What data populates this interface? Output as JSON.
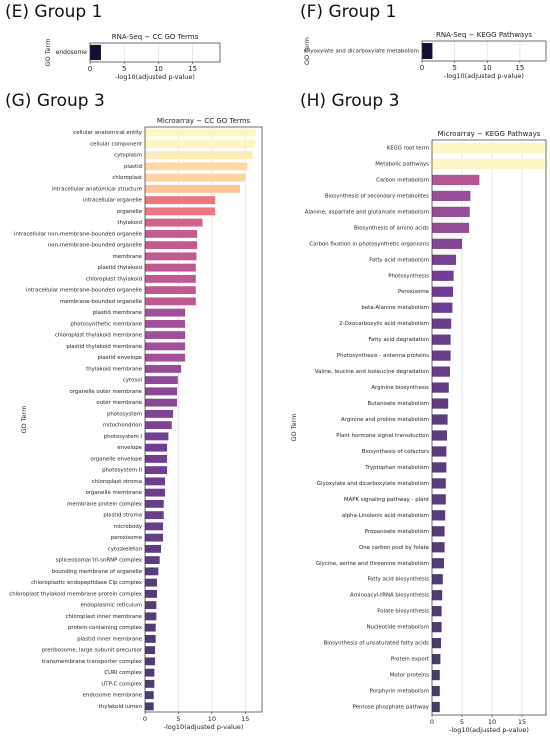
{
  "panels": {
    "e": "(E) Group 1",
    "f": "(F) Group 1",
    "g": "(G) Group 3",
    "h": "(H) Group 3"
  },
  "chart_data": [
    {
      "id": "e",
      "type": "bar",
      "orientation": "horizontal",
      "title": "RNA-Seq − CC GO Terms",
      "xlabel": "-log10(adjusted p-value)",
      "ylabel": "GO Term",
      "xlim": [
        0,
        19
      ],
      "xticks": [
        0,
        5,
        10,
        15
      ],
      "grid": true,
      "categories": [
        "endosome"
      ],
      "values": [
        1.6
      ],
      "colors": [
        "#150e37"
      ]
    },
    {
      "id": "f",
      "type": "bar",
      "orientation": "horizontal",
      "title": "RNA-Seq − KEGG Pathways",
      "xlabel": "-log10(adjusted p-value)",
      "ylabel": "GO Term",
      "xlim": [
        0,
        19
      ],
      "xticks": [
        0,
        5,
        10,
        15
      ],
      "grid": true,
      "categories": [
        "Glyoxylate and dicarboxylate metabolism"
      ],
      "values": [
        1.6
      ],
      "colors": [
        "#150e37"
      ]
    },
    {
      "id": "g",
      "type": "bar",
      "orientation": "horizontal",
      "title": "Microarray − CC GO Terms",
      "xlabel": "-log10(adjusted p-value)",
      "ylabel": "GO Term",
      "xlim": [
        0,
        17.5
      ],
      "xticks": [
        0,
        5,
        10,
        15
      ],
      "grid": true,
      "categories": [
        "cellular anatomical entity",
        "cellular component",
        "cytoplasm",
        "plastid",
        "chloroplast",
        "intracellular anatomical structure",
        "intracellular organelle",
        "organelle",
        "thylakoid",
        "intracellular non-membrane-bounded organelle",
        "non-membrane-bounded organelle",
        "membrane",
        "plastid thylakoid",
        "chloroplast thylakoid",
        "intracellular membrane-bounded organelle",
        "membrane-bounded organelle",
        "plastid membrane",
        "photosynthetic membrane",
        "chloroplast thylakoid membrane",
        "plastid thylakoid membrane",
        "plastid envelope",
        "thylakoid membrane",
        "cytosol",
        "organelle outer membrane",
        "outer membrane",
        "photosystem",
        "mitochondrion",
        "photosystem I",
        "envelope",
        "organelle envelope",
        "photosystem II",
        "chloroplast stroma",
        "organelle membrane",
        "membrane protein complex",
        "plastid stroma",
        "microbody",
        "peroxisome",
        "cytoskeleton",
        "spliceosomal tri-snRNP complex",
        "bounding membrane of organelle",
        "chloroplastic endopeptidase Clp complex",
        "chloroplast thylakoid membrane protein complex",
        "endoplasmic reticulum",
        "chloroplast inner membrane",
        "protein-containing complex",
        "plastid inner membrane",
        "preribosome, large subunit precursor",
        "transmembrane transporter complex",
        "CURI complex",
        "UTP-C complex",
        "endosome membrane",
        "thylakoid lumen"
      ],
      "values": [
        16.6,
        16.5,
        16.1,
        15.3,
        15.0,
        14.2,
        10.5,
        10.5,
        8.6,
        7.8,
        7.8,
        7.7,
        7.6,
        7.6,
        7.6,
        7.6,
        6.0,
        6.0,
        6.0,
        6.0,
        6.0,
        5.4,
        4.9,
        4.8,
        4.8,
        4.2,
        4.0,
        3.5,
        3.3,
        3.3,
        3.3,
        3.0,
        3.0,
        2.8,
        2.8,
        2.7,
        2.7,
        2.4,
        2.2,
        2.0,
        1.8,
        1.8,
        1.7,
        1.7,
        1.6,
        1.6,
        1.5,
        1.5,
        1.4,
        1.4,
        1.3,
        1.3
      ]
    },
    {
      "id": "h",
      "type": "bar",
      "orientation": "horizontal",
      "title": "Microarray − KEGG Pathways",
      "xlabel": "-log10(adjusted p-value)",
      "ylabel": "GO Term",
      "xlim": [
        0,
        19
      ],
      "xticks": [
        0,
        5,
        10,
        15
      ],
      "grid": true,
      "categories": [
        "KEGG root term",
        "Metabolic pathways",
        "Carbon metabolism",
        "Biosynthesis of secondary metabolites",
        "Alanine, aspartate and glutamate metabolism",
        "Biosynthesis of amino acids",
        "Carbon fixation in photosynthetic organisms",
        "Fatty acid metabolism",
        "Photosynthesis",
        "Peroxisome",
        "beta-Alanine metabolism",
        "2-Oxocarboxylic acid metabolism",
        "Fatty acid degradation",
        "Photosynthesis - antenna proteins",
        "Valine, leucine and isoleucine degradation",
        "Arginine biosynthesis",
        "Butanoate metabolism",
        "Arginine and proline metabolism",
        "Plant hormone signal transduction",
        "Biosynthesis of cofactors",
        "Tryptophan metabolism",
        "Glyoxylate and dicarboxylate metabolism",
        "MAPK signaling pathway - plant",
        "alpha-Linolenic acid metabolism",
        "Propanoate metabolism",
        "One carbon pool by folate",
        "Glycine, serine and threonine metabolism",
        "Fatty acid biosynthesis",
        "Aminoacyl-tRNA biosynthesis",
        "Folate biosynthesis",
        "Nucleotide metabolism",
        "Biosynthesis of unsaturated fatty acids",
        "Protein export",
        "Motor proteins",
        "Porphyrin metabolism",
        "Pentose phosphate pathway"
      ],
      "values": [
        18.8,
        18.8,
        7.9,
        6.4,
        6.3,
        6.2,
        5.0,
        4.0,
        3.6,
        3.5,
        3.4,
        3.2,
        3.1,
        3.1,
        3.0,
        2.8,
        2.7,
        2.6,
        2.5,
        2.4,
        2.4,
        2.3,
        2.3,
        2.2,
        2.1,
        2.1,
        2.0,
        1.8,
        1.7,
        1.6,
        1.6,
        1.5,
        1.4,
        1.3,
        1.3,
        1.3
      ]
    }
  ]
}
